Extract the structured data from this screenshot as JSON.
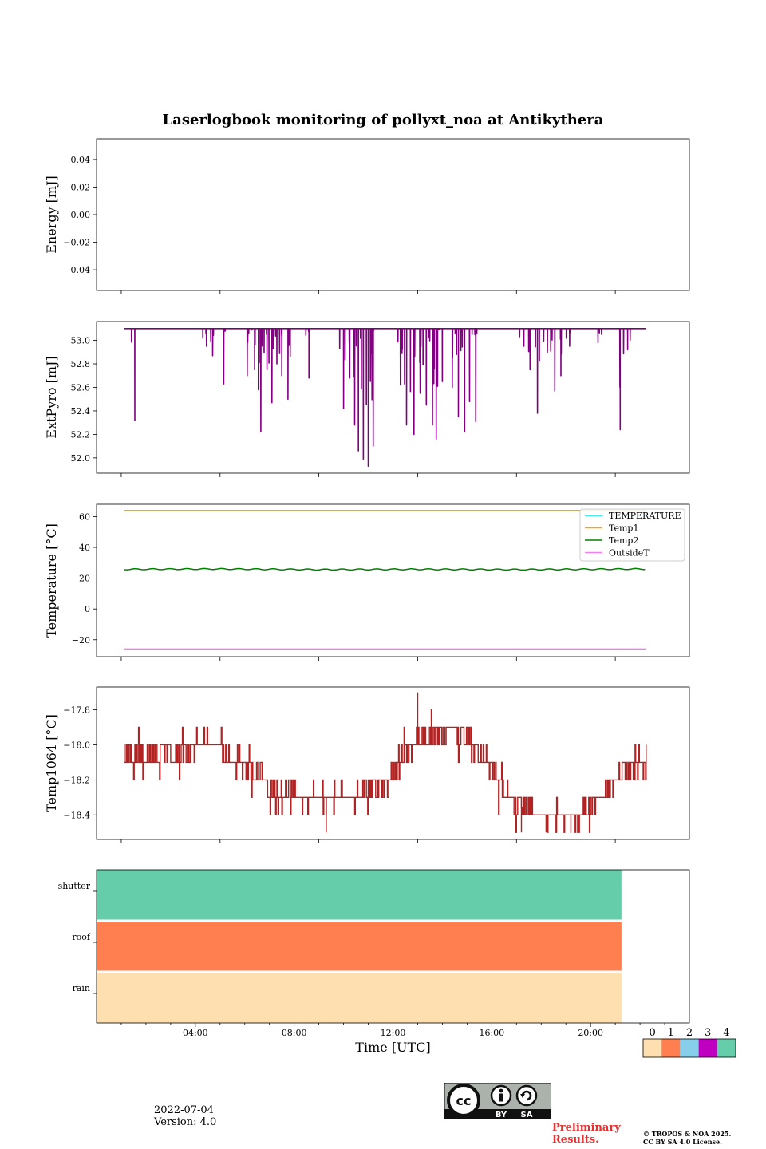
{
  "figure": {
    "title": "Laserlogbook monitoring of pollyxt_noa at Antikythera",
    "date": "2022-07-04",
    "version": "Version: 4.0",
    "preliminary": [
      "Preliminary",
      "Results."
    ],
    "copyright": [
      "© TROPOS & NOA 2025.",
      "CC BY SA 4.0 License."
    ],
    "license_badge": {
      "icon": "cc-by-sa-icon",
      "labels": [
        "BY",
        "SA"
      ],
      "bg": "#aab2ab"
    }
  },
  "chart_data": [
    {
      "type": "line",
      "ylabel": "Energy [mJ]",
      "ylim": [
        -0.055,
        0.055
      ],
      "yticks": [
        -0.04,
        -0.02,
        0.0,
        0.02,
        0.04
      ],
      "series": []
    },
    {
      "type": "line",
      "ylabel": "ExtPyro [mJ]",
      "ylim": [
        51.87,
        53.16
      ],
      "yticks": [
        52.0,
        52.2,
        52.4,
        52.6,
        52.8,
        53.0
      ],
      "color": "#800080",
      "baseline": 53.1,
      "x_range": [
        1.1,
        22.25
      ],
      "dips": [
        [
          1.55,
          52.32
        ],
        [
          4.45,
          52.95
        ],
        [
          4.7,
          52.87
        ],
        [
          5.15,
          52.63
        ],
        [
          6.1,
          52.7
        ],
        [
          6.4,
          52.75
        ],
        [
          6.55,
          52.58
        ],
        [
          6.65,
          52.22
        ],
        [
          6.9,
          52.75
        ],
        [
          7.1,
          52.47
        ],
        [
          7.3,
          52.8
        ],
        [
          7.5,
          52.7
        ],
        [
          7.75,
          52.5
        ],
        [
          8.6,
          52.68
        ],
        [
          10.0,
          52.42
        ],
        [
          10.25,
          52.68
        ],
        [
          10.45,
          52.28
        ],
        [
          10.6,
          52.06
        ],
        [
          10.8,
          51.99
        ],
        [
          11.0,
          51.93
        ],
        [
          11.2,
          52.1
        ],
        [
          12.3,
          52.62
        ],
        [
          12.55,
          52.28
        ],
        [
          12.85,
          52.2
        ],
        [
          13.1,
          52.55
        ],
        [
          13.35,
          52.45
        ],
        [
          13.6,
          52.28
        ],
        [
          13.75,
          52.16
        ],
        [
          14.0,
          52.65
        ],
        [
          14.4,
          52.6
        ],
        [
          14.65,
          52.35
        ],
        [
          14.9,
          52.22
        ],
        [
          15.1,
          52.48
        ],
        [
          15.35,
          52.31
        ],
        [
          17.3,
          52.95
        ],
        [
          17.55,
          52.75
        ],
        [
          17.85,
          52.38
        ],
        [
          18.25,
          52.9
        ],
        [
          18.55,
          52.57
        ],
        [
          18.8,
          52.7
        ],
        [
          19.15,
          52.95
        ],
        [
          20.3,
          52.98
        ],
        [
          21.2,
          52.24
        ],
        [
          21.5,
          52.92
        ]
      ],
      "points": [],
      "series": []
    },
    {
      "type": "line",
      "ylabel": "Temperature [°C]",
      "ylim": [
        -31,
        68
      ],
      "yticks": [
        -20,
        0,
        20,
        40,
        60
      ],
      "legend_location": "top-right",
      "series": [
        {
          "name": "TEMPERATURE",
          "color": "#00e5e5",
          "x": [],
          "values": []
        },
        {
          "name": "Temp1",
          "color": "#ffa500",
          "x": [
            1.1,
            22.25
          ],
          "values": [
            64,
            64
          ]
        },
        {
          "name": "Temp2",
          "color": "#008000",
          "x": [
            1.1,
            5.0,
            9.0,
            13.0,
            17.0,
            22.25
          ],
          "values": [
            25.8,
            26.0,
            25.6,
            25.8,
            25.6,
            26.0
          ]
        },
        {
          "name": "OutsideT",
          "color": "#ee82ee",
          "x": [
            1.1,
            22.25
          ],
          "values": [
            -26,
            -26
          ]
        }
      ]
    },
    {
      "type": "line",
      "ylabel": "Temp1064 [°C]",
      "ylim": [
        -18.54,
        -17.67
      ],
      "yticks": [
        -18.4,
        -18.2,
        -18.0,
        -17.8
      ],
      "color": "#b22222",
      "x_range": [
        1.1,
        22.25
      ],
      "trend": [
        [
          1.1,
          -18.05
        ],
        [
          3.5,
          -18.05
        ],
        [
          4.2,
          -18.0
        ],
        [
          5.0,
          -18.0
        ],
        [
          5.4,
          -18.1
        ],
        [
          6.5,
          -18.15
        ],
        [
          7.0,
          -18.25
        ],
        [
          8.5,
          -18.3
        ],
        [
          9.5,
          -18.3
        ],
        [
          10.5,
          -18.3
        ],
        [
          11.0,
          -18.25
        ],
        [
          12.0,
          -18.2
        ],
        [
          12.3,
          -18.05
        ],
        [
          13.5,
          -17.95
        ],
        [
          14.5,
          -17.9
        ],
        [
          15.2,
          -18.0
        ],
        [
          16.0,
          -18.15
        ],
        [
          17.0,
          -18.35
        ],
        [
          18.0,
          -18.4
        ],
        [
          19.0,
          -18.4
        ],
        [
          19.5,
          -18.4
        ],
        [
          20.0,
          -18.35
        ],
        [
          20.8,
          -18.25
        ],
        [
          21.4,
          -18.15
        ],
        [
          22.25,
          -18.1
        ]
      ],
      "step": 0.1,
      "spikes": [
        [
          9.3,
          -18.5
        ],
        [
          13.0,
          -17.7
        ],
        [
          17.2,
          -18.5
        ],
        [
          18.2,
          -18.5
        ],
        [
          19.2,
          -18.5
        ]
      ],
      "points": []
    },
    {
      "type": "heatmap",
      "xlabel": "Time [UTC]",
      "xlim": [
        0,
        24
      ],
      "xticks": [
        4,
        8,
        12,
        16,
        20
      ],
      "xtick_labels": [
        "04:00",
        "08:00",
        "12:00",
        "16:00",
        "20:00"
      ],
      "rows": [
        "shutter",
        "roof",
        "rain"
      ],
      "values": [
        4,
        1,
        0
      ],
      "x_end": 21.25,
      "colorbar": {
        "ticks": [
          "0",
          "1",
          "2",
          "3",
          "4"
        ],
        "colors": [
          "#fddfb0",
          "#ff7f50",
          "#87ceeb",
          "#c000c0",
          "#66cdaa"
        ]
      }
    }
  ]
}
